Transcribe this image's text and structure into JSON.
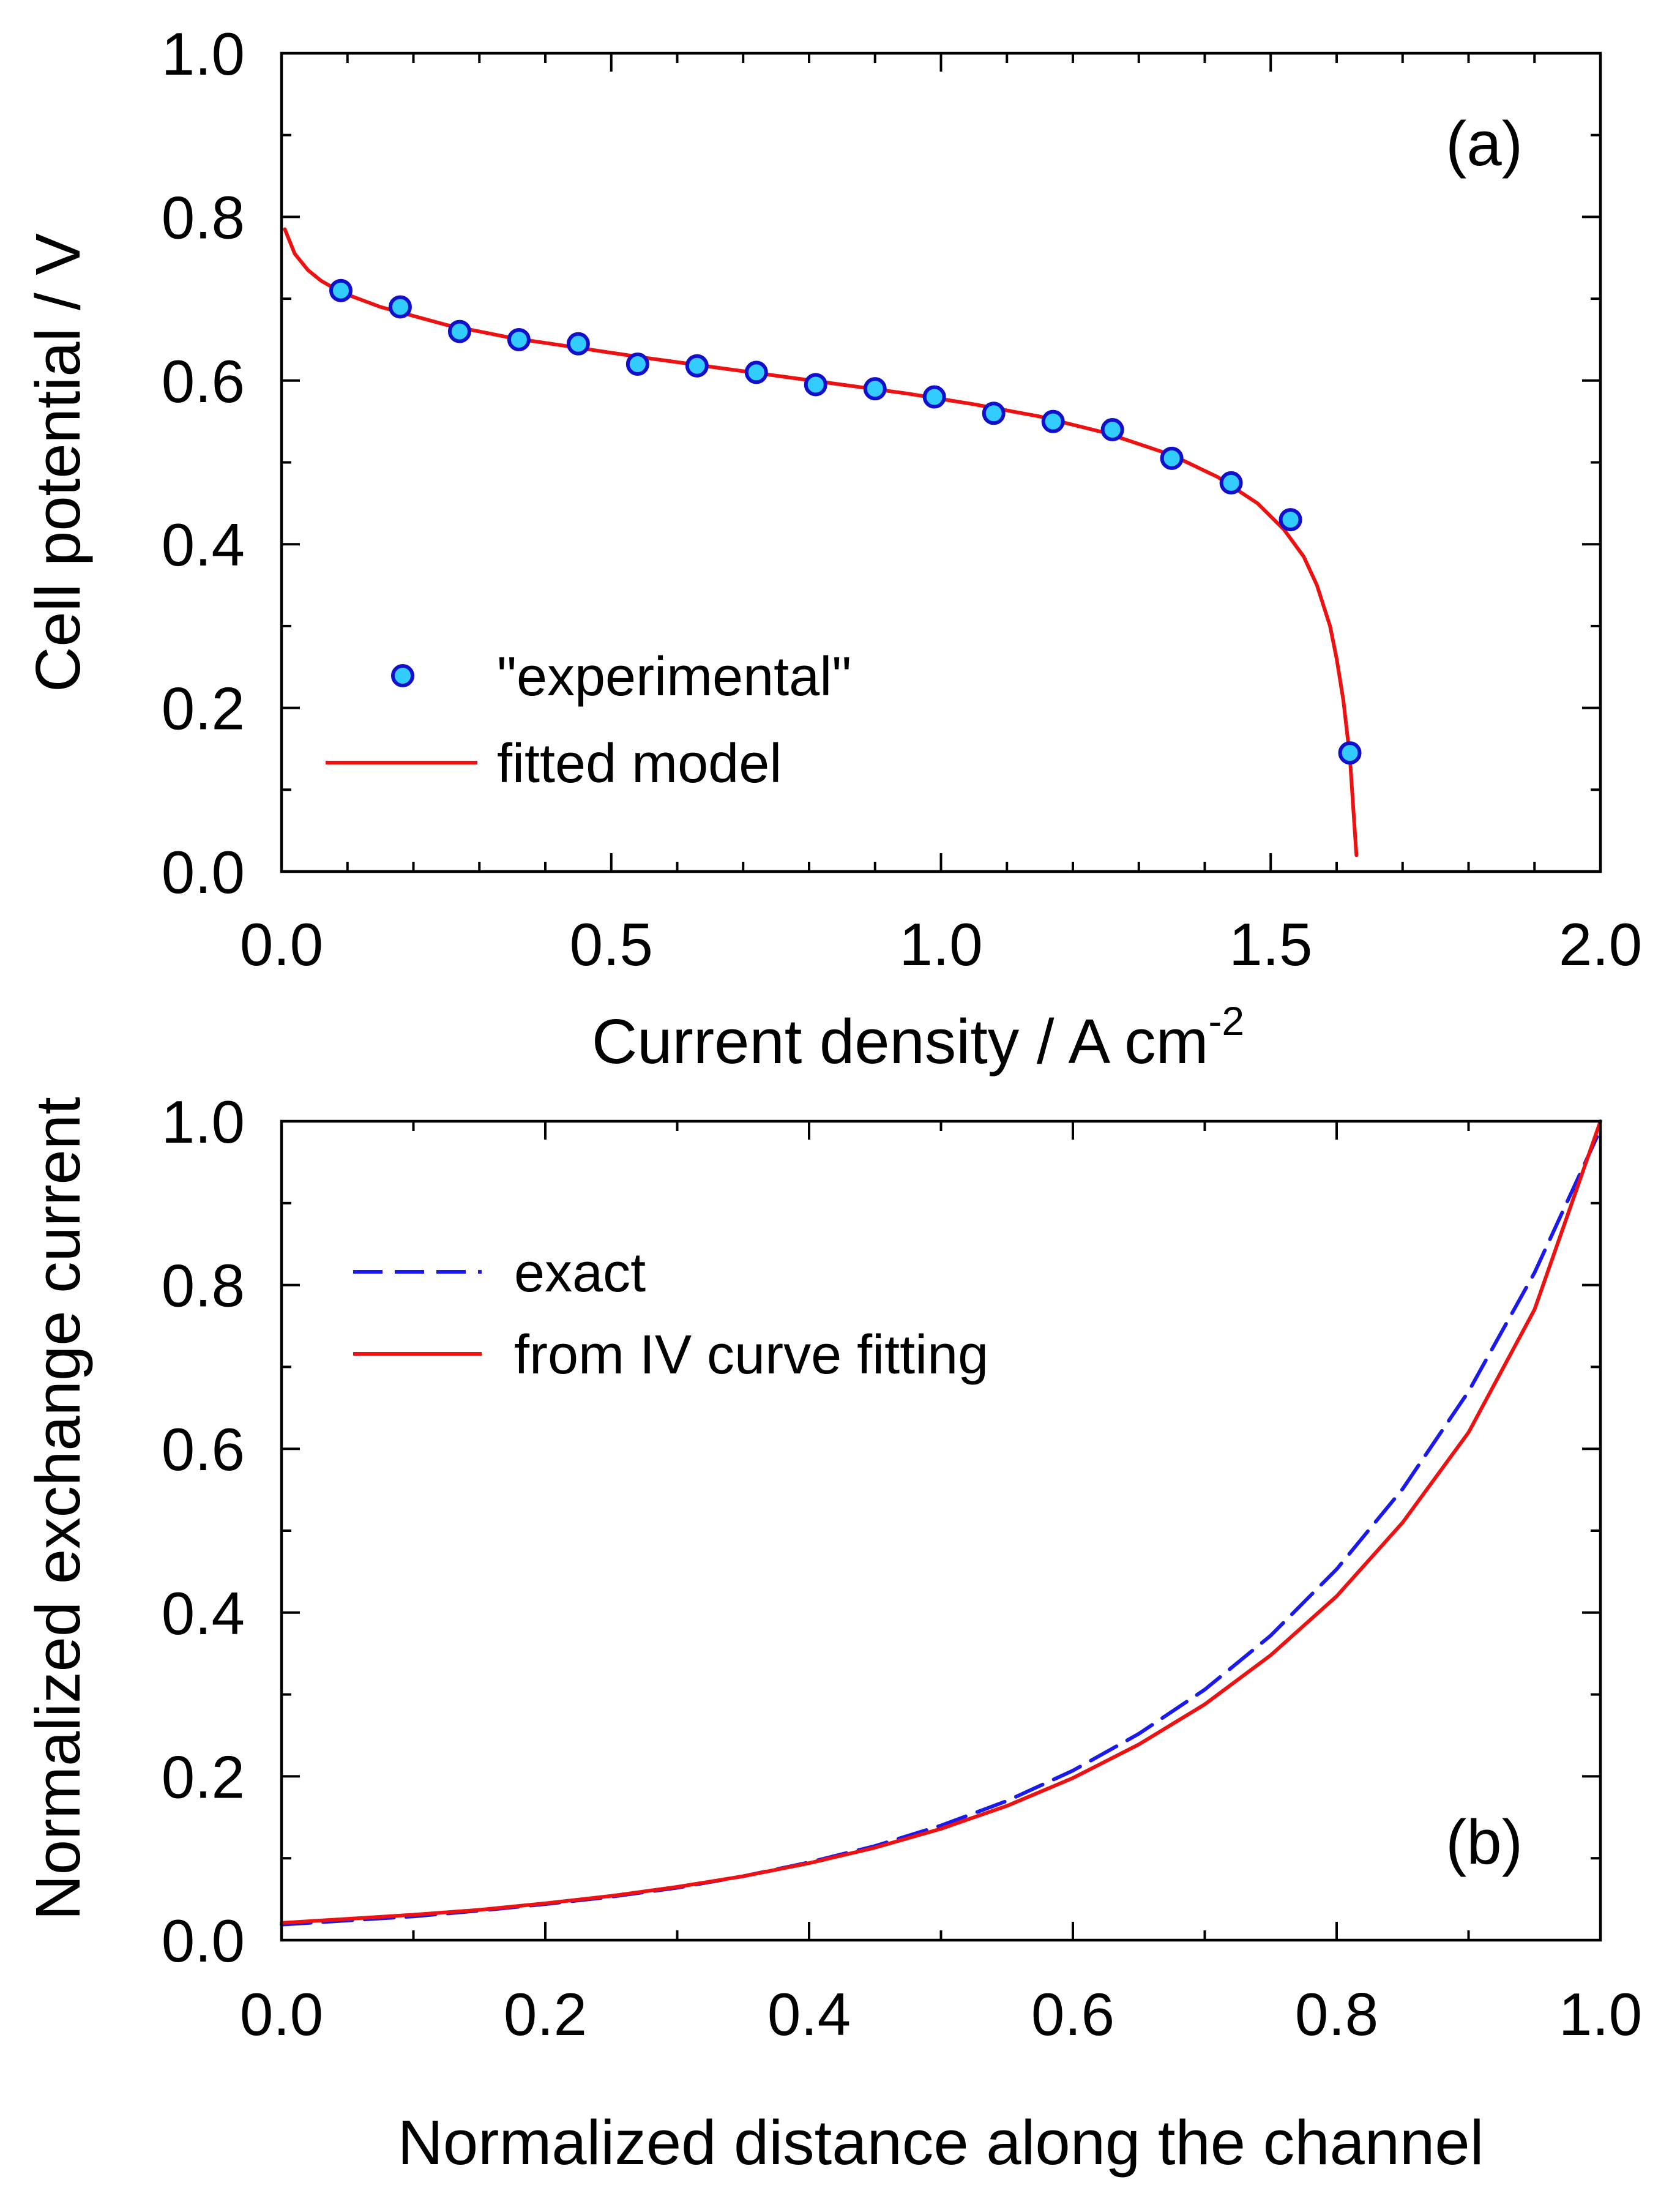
{
  "chart_data": [
    {
      "type": "scatter+line",
      "panel_label": "(a)",
      "title": "",
      "xlabel": "Current density / A cm",
      "xlabel_superscript": "-2",
      "ylabel": "Cell potential / V",
      "xlim": [
        0,
        2.0
      ],
      "ylim": [
        0,
        1.0
      ],
      "x_ticks": [
        0.0,
        0.5,
        1.0,
        1.5,
        2.0
      ],
      "x_tick_labels": [
        "0.0",
        "0.5",
        "1.0",
        "1.5",
        "2.0"
      ],
      "y_ticks": [
        0.0,
        0.2,
        0.4,
        0.6,
        0.8,
        1.0
      ],
      "y_tick_labels": [
        "0.0",
        "0.2",
        "0.4",
        "0.6",
        "0.8",
        "1.0"
      ],
      "x_minor_step": 0.1,
      "y_minor_step": 0.1,
      "grid": false,
      "legend_position": "bottom-left",
      "series": [
        {
          "name": "\"experimental\"",
          "kind": "markers",
          "color": "#33ccff",
          "edge_color": "#1010cc",
          "x": [
            0.09,
            0.18,
            0.27,
            0.36,
            0.45,
            0.54,
            0.63,
            0.72,
            0.81,
            0.9,
            0.99,
            1.08,
            1.17,
            1.26,
            1.35,
            1.44,
            1.53,
            1.62
          ],
          "y": [
            0.71,
            0.69,
            0.66,
            0.65,
            0.645,
            0.62,
            0.618,
            0.61,
            0.595,
            0.59,
            0.58,
            0.56,
            0.55,
            0.54,
            0.505,
            0.475,
            0.43,
            0.145
          ]
        },
        {
          "name": "fitted model",
          "kind": "line",
          "color": "#ee1111",
          "x": [
            0.005,
            0.02,
            0.04,
            0.06,
            0.09,
            0.15,
            0.25,
            0.35,
            0.45,
            0.55,
            0.65,
            0.75,
            0.85,
            0.95,
            1.05,
            1.15,
            1.25,
            1.35,
            1.42,
            1.48,
            1.52,
            1.55,
            1.57,
            1.59,
            1.6,
            1.61,
            1.62,
            1.625,
            1.63
          ],
          "y": [
            0.785,
            0.755,
            0.735,
            0.722,
            0.708,
            0.69,
            0.668,
            0.652,
            0.64,
            0.628,
            0.617,
            0.606,
            0.595,
            0.584,
            0.571,
            0.556,
            0.536,
            0.509,
            0.482,
            0.45,
            0.418,
            0.385,
            0.35,
            0.3,
            0.26,
            0.21,
            0.14,
            0.08,
            0.02
          ]
        }
      ]
    },
    {
      "type": "line",
      "panel_label": "(b)",
      "title": "",
      "xlabel": "Normalized distance along the channel",
      "ylabel": "Normalized exchange current",
      "xlim": [
        0,
        1.0
      ],
      "ylim": [
        0,
        1.0
      ],
      "x_ticks": [
        0.0,
        0.2,
        0.4,
        0.6,
        0.8,
        1.0
      ],
      "x_tick_labels": [
        "0.0",
        "0.2",
        "0.4",
        "0.6",
        "0.8",
        "1.0"
      ],
      "y_ticks": [
        0.0,
        0.2,
        0.4,
        0.6,
        0.8,
        1.0
      ],
      "y_tick_labels": [
        "0.0",
        "0.2",
        "0.4",
        "0.6",
        "0.8",
        "1.0"
      ],
      "x_minor_step": 0.1,
      "y_minor_step": 0.1,
      "grid": false,
      "legend_position": "top-left",
      "series": [
        {
          "name": "exact",
          "kind": "dashed-line",
          "color": "#1a1aee",
          "x": [
            0.0,
            0.05,
            0.1,
            0.15,
            0.2,
            0.25,
            0.3,
            0.35,
            0.4,
            0.45,
            0.5,
            0.55,
            0.6,
            0.65,
            0.7,
            0.75,
            0.8,
            0.85,
            0.9,
            0.95,
            1.0
          ],
          "y": [
            0.019,
            0.024,
            0.029,
            0.036,
            0.044,
            0.053,
            0.064,
            0.078,
            0.095,
            0.115,
            0.14,
            0.17,
            0.207,
            0.252,
            0.306,
            0.372,
            0.453,
            0.551,
            0.67,
            0.815,
            0.99
          ]
        },
        {
          "name": "from IV curve fitting",
          "kind": "line",
          "color": "#ee1111",
          "x": [
            0.0,
            0.05,
            0.1,
            0.15,
            0.2,
            0.25,
            0.3,
            0.35,
            0.4,
            0.45,
            0.5,
            0.55,
            0.6,
            0.65,
            0.7,
            0.75,
            0.8,
            0.85,
            0.9,
            0.95,
            1.0
          ],
          "y": [
            0.021,
            0.026,
            0.031,
            0.037,
            0.045,
            0.054,
            0.065,
            0.078,
            0.094,
            0.113,
            0.136,
            0.164,
            0.198,
            0.239,
            0.288,
            0.348,
            0.42,
            0.51,
            0.62,
            0.77,
            1.0
          ]
        }
      ]
    }
  ]
}
